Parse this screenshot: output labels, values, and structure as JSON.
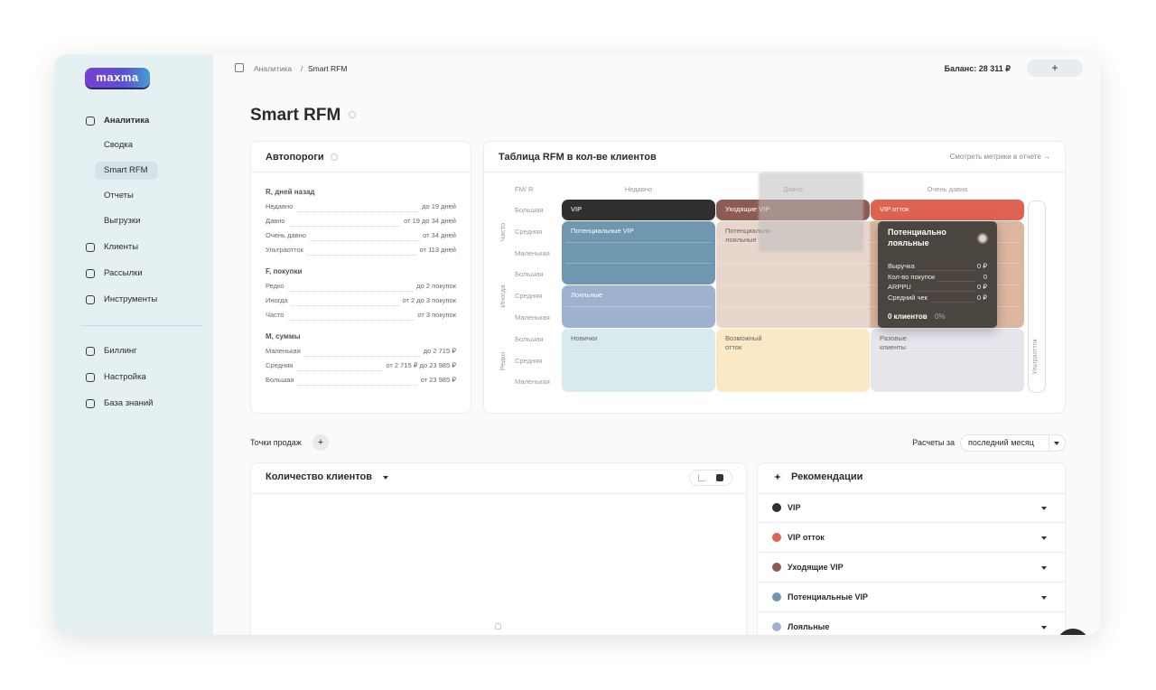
{
  "sidebar": {
    "logo": "maxma",
    "sections": [
      {
        "label": "Аналитика",
        "items": [
          "Сводка",
          "Smart RFM",
          "Отчеты",
          "Выгрузки"
        ]
      },
      {
        "label": "Клиенты"
      },
      {
        "label": "Рассылки"
      },
      {
        "label": "Инструменты"
      }
    ],
    "footer": [
      "Биллинг",
      "Настройка",
      "База знаний"
    ]
  },
  "header": {
    "breadcrumb": [
      "Аналитика",
      "Smart RFM"
    ],
    "separator": "/",
    "balance": "Баланс: 28 311 ₽",
    "add_button": "+"
  },
  "page_title": "Smart RFM",
  "thresholds": {
    "title": "Автопороги",
    "groups": [
      {
        "title": "R, дней назад",
        "rows": [
          [
            "Недавно",
            "до 19 дней"
          ],
          [
            "Давно",
            "от 19 до 34 дней"
          ],
          [
            "Очень давно",
            "от 34 дней"
          ],
          [
            "Ультраотток",
            "от 113 дней"
          ]
        ]
      },
      {
        "title": "F, покупки",
        "rows": [
          [
            "Редко",
            "до 2 покупок"
          ],
          [
            "Иногда",
            "от 2 до 3 покупок"
          ],
          [
            "Часто",
            "от 3 покупок"
          ]
        ]
      },
      {
        "title": "M, суммы",
        "rows": [
          [
            "Маленькая",
            "до 2 715 ₽"
          ],
          [
            "Средняя",
            "от 2 715 ₽ до 23 985 ₽"
          ],
          [
            "Большая",
            "от 23 985 ₽"
          ]
        ]
      }
    ]
  },
  "rfm_table": {
    "title": "Таблица RFM в кол-ве клиентов",
    "link": "Смотреть метрики в отчете →",
    "corner": "FM/ R",
    "columns": [
      "Недавно",
      "Давно",
      "Очень давно"
    ],
    "extra_column": "Ультраотток",
    "row_groups": [
      {
        "label": "Часто",
        "rows": [
          "Большая",
          "Средняя",
          "Маленькая"
        ]
      },
      {
        "label": "Иногда",
        "rows": [
          "Большая",
          "Средняя",
          "Маленькая"
        ]
      },
      {
        "label": "Редко",
        "rows": [
          "Большая",
          "Средняя",
          "Маленькая"
        ]
      }
    ],
    "segments": [
      {
        "name": "VIP",
        "color": "#303030"
      },
      {
        "name": "Уходящие VIP",
        "color": "#8e5b53"
      },
      {
        "name": "VIP отток",
        "color": "#df6350"
      },
      {
        "name": "Потенциальные VIP",
        "color": "#6f98b0"
      },
      {
        "name": "Лояльные",
        "color": "#9eb2cf"
      },
      {
        "name": "Потенциально лояльные",
        "color": "#e8d5cb"
      },
      {
        "name": "Новички",
        "color": "#d8eaed"
      },
      {
        "name": "Возможный отток",
        "color": "#fbe9c6"
      },
      {
        "name": "Разовые клиенты",
        "color": "#e5e5ec"
      }
    ],
    "tooltip": {
      "title": "Потенциально лояльные",
      "metrics": [
        [
          "Выручка",
          "0 ₽"
        ],
        [
          "Кол-во покупок",
          "0"
        ],
        [
          "ARPPU",
          "0 ₽"
        ],
        [
          "Средний чек",
          "0 ₽"
        ]
      ],
      "clients": "0 клиентов",
      "share": "0%"
    }
  },
  "sales_points": {
    "label": "Точки продаж",
    "add_button": "+"
  },
  "period": {
    "label": "Расчеты за",
    "value": "последний месяц"
  },
  "clients_chart": {
    "title": "Количество клиентов"
  },
  "recommendations": {
    "title": "Рекомендации",
    "items": [
      {
        "name": "VIP",
        "color": "#303030"
      },
      {
        "name": "VIP отток",
        "color": "#df6350"
      },
      {
        "name": "Уходящие VIP",
        "color": "#8e5b53"
      },
      {
        "name": "Потенциальные VIP",
        "color": "#6f98b0"
      },
      {
        "name": "Лояльные",
        "color": "#9eb2cf"
      }
    ]
  }
}
